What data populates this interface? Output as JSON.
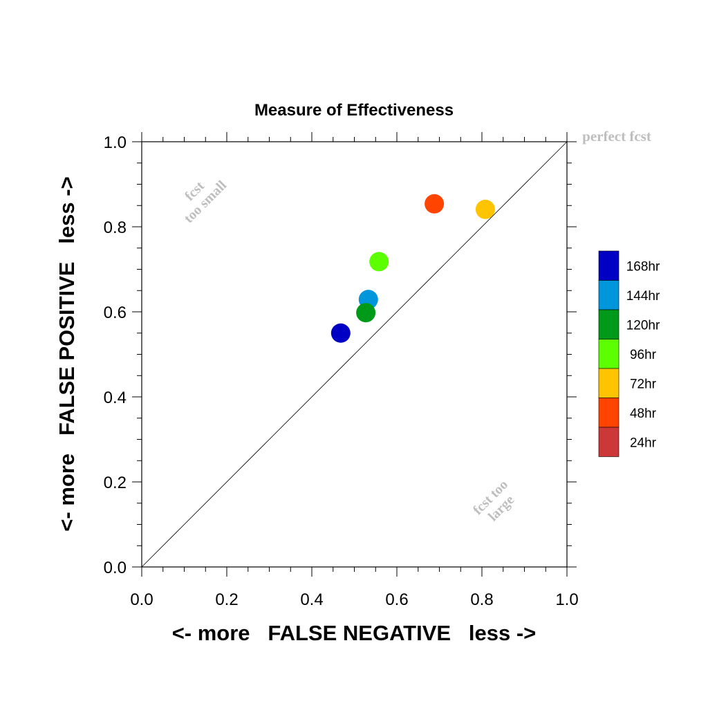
{
  "chart_data": {
    "type": "scatter",
    "title": "Measure of Effectiveness",
    "xlabel": "<- more   FALSE NEGATIVE   less ->",
    "ylabel": "<- more   FALSE POSITIVE   less ->",
    "xlim": [
      0.0,
      1.0
    ],
    "ylim": [
      0.0,
      1.0
    ],
    "x_ticks": [
      "0.0",
      "0.2",
      "0.4",
      "0.6",
      "0.8",
      "1.0"
    ],
    "y_ticks": [
      "0.0",
      "0.2",
      "0.4",
      "0.6",
      "0.8",
      "1.0"
    ],
    "grid": false,
    "diagonal_line": true,
    "annotations": {
      "perfect": "perfect fcst",
      "too_small_line1": "fcst",
      "too_small_line2": "too small",
      "too_large_line1": "fcst too",
      "too_large_line2": "large"
    },
    "legend_position": "right",
    "series": [
      {
        "name": "168hr",
        "color": "#0000c4",
        "x": 0.468,
        "y": 0.55
      },
      {
        "name": "144hr",
        "color": "#0096dc",
        "x": 0.533,
        "y": 0.629
      },
      {
        "name": "120hr",
        "color": "#009a1a",
        "x": 0.527,
        "y": 0.598
      },
      {
        "name": "96hr",
        "color": "#5cff00",
        "x": 0.558,
        "y": 0.718
      },
      {
        "name": "72hr",
        "color": "#ffc400",
        "x": 0.808,
        "y": 0.841
      },
      {
        "name": "48hr",
        "color": "#ff4400",
        "x": 0.688,
        "y": 0.854
      },
      {
        "name": "24hr",
        "color": "#cc3838",
        "x": null,
        "y": null
      }
    ]
  }
}
